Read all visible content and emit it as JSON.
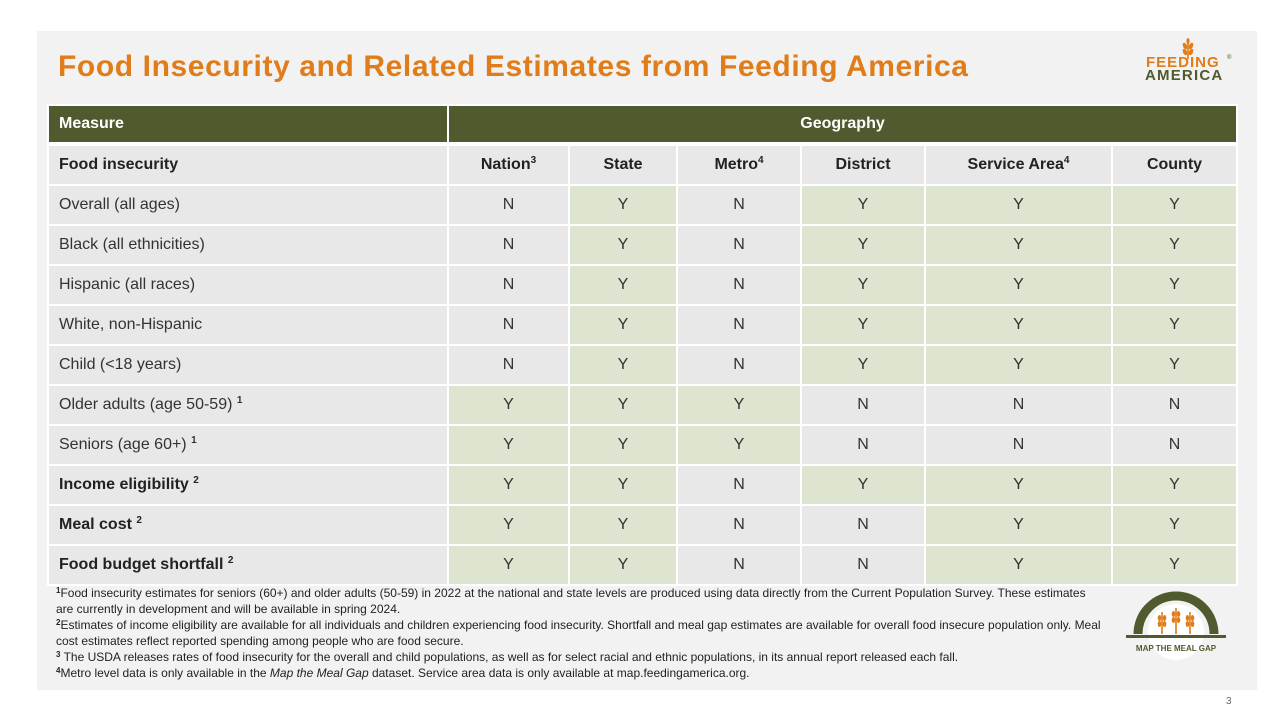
{
  "title": "Food Insecurity and Related Estimates from Feeding America",
  "logo": {
    "line1": "FEEDING",
    "line2": "AMERICA",
    "tm": "®"
  },
  "table": {
    "header_measure": "Measure",
    "header_geography": "Geography",
    "sub_label": "Food insecurity",
    "columns": [
      {
        "label": "Nation",
        "sup": "3"
      },
      {
        "label": "State",
        "sup": ""
      },
      {
        "label": "Metro",
        "sup": "4"
      },
      {
        "label": "District",
        "sup": ""
      },
      {
        "label": "Service Area",
        "sup": "4"
      },
      {
        "label": "County",
        "sup": ""
      }
    ],
    "rows": [
      {
        "label": "Overall  (all ages)",
        "sup": "",
        "values": [
          "N",
          "Y",
          "N",
          "Y",
          "Y",
          "Y"
        ]
      },
      {
        "label": "Black  (all ethnicities)",
        "sup": "",
        "values": [
          "N",
          "Y",
          "N",
          "Y",
          "Y",
          "Y"
        ]
      },
      {
        "label": "Hispanic  (all races)",
        "sup": "",
        "values": [
          "N",
          "Y",
          "N",
          "Y",
          "Y",
          "Y"
        ]
      },
      {
        "label": "White, non-Hispanic",
        "sup": "",
        "values": [
          "N",
          "Y",
          "N",
          "Y",
          "Y",
          "Y"
        ]
      },
      {
        "label": "Child  (<18 years)",
        "sup": "",
        "values": [
          "N",
          "Y",
          "N",
          "Y",
          "Y",
          "Y"
        ]
      },
      {
        "label": "Older  adults  (age 50-59)",
        "sup": "1",
        "values": [
          "Y",
          "Y",
          "Y",
          "N",
          "N",
          "N"
        ]
      },
      {
        "label": "Seniors  (age 60+)",
        "sup": "1",
        "values": [
          "Y",
          "Y",
          "Y",
          "N",
          "N",
          "N"
        ]
      },
      {
        "label": "Income  eligibility",
        "sup": "2",
        "values": [
          "Y",
          "Y",
          "N",
          "Y",
          "Y",
          "Y"
        ]
      },
      {
        "label": "Meal  cost",
        "sup": "2",
        "values": [
          "Y",
          "Y",
          "N",
          "N",
          "Y",
          "Y"
        ]
      },
      {
        "label": "Food  budget  shortfall",
        "sup": "2",
        "values": [
          "Y",
          "Y",
          "N",
          "N",
          "Y",
          "Y"
        ]
      }
    ]
  },
  "footnotes": [
    {
      "num": "1",
      "pre": "Food insecurity estimates for seniors (60+) and older adults (50-59)  in 2022 at the national and state levels  are produced  using data directly from the Current  Population Survey. These estimates are currently in development  and will be available  in spring 2024.",
      "em": "",
      "post": ""
    },
    {
      "num": "2",
      "pre": "Estimates of income eligibility are available  for all individuals  and children experiencing food insecurity. Shortfall and meal gap estimates are available  for overall  food insecure population only. Meal cost estimates reflect reported  spending among  people who are food secure.",
      "em": "",
      "post": ""
    },
    {
      "num": "3",
      "pre": " The USDA releases rates of food insecurity for the overall  and child populations, as well as for select racial and ethnic populations,  in its annual report  released each fall.",
      "em": "",
      "post": ""
    },
    {
      "num": "4",
      "pre": "Metro level data is only available  in the ",
      "em": "Map the Meal Gap",
      "post": " dataset. Service  area data is only available  at map.feedingamerica.org."
    }
  ],
  "mmg_logo_text": "MAP THE MEAL GAP",
  "page_number": "3",
  "colors": {
    "accent": "#e07c19",
    "header_bg": "#4f5b2e",
    "yes_cell": "#dde4d0",
    "no_cell": "#e8e8e8"
  }
}
